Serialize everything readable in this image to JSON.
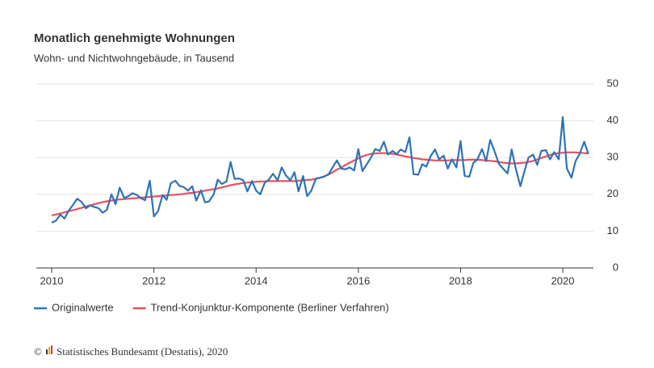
{
  "chart_data": {
    "type": "line",
    "title": "Monatlich genehmigte Wohnungen",
    "subtitle": "Wohn- und Nichtwohngebäude, in Tausend",
    "source": "Statistisches Bundesamt (Destatis), 2020",
    "x": [
      2010.0,
      2010.08,
      2010.17,
      2010.25,
      2010.33,
      2010.42,
      2010.5,
      2010.58,
      2010.67,
      2010.75,
      2010.83,
      2010.92,
      2011.0,
      2011.08,
      2011.17,
      2011.25,
      2011.33,
      2011.42,
      2011.5,
      2011.58,
      2011.67,
      2011.75,
      2011.83,
      2011.92,
      2012.0,
      2012.08,
      2012.17,
      2012.25,
      2012.33,
      2012.42,
      2012.5,
      2012.58,
      2012.67,
      2012.75,
      2012.83,
      2012.92,
      2013.0,
      2013.08,
      2013.17,
      2013.25,
      2013.33,
      2013.42,
      2013.5,
      2013.58,
      2013.67,
      2013.75,
      2013.83,
      2013.92,
      2014.0,
      2014.08,
      2014.17,
      2014.25,
      2014.33,
      2014.42,
      2014.5,
      2014.58,
      2014.67,
      2014.75,
      2014.83,
      2014.92,
      2015.0,
      2015.08,
      2015.17,
      2015.25,
      2015.33,
      2015.42,
      2015.5,
      2015.58,
      2015.67,
      2015.75,
      2015.83,
      2015.92,
      2016.0,
      2016.08,
      2016.17,
      2016.25,
      2016.33,
      2016.42,
      2016.5,
      2016.58,
      2016.67,
      2016.75,
      2016.83,
      2016.92,
      2017.0,
      2017.08,
      2017.17,
      2017.25,
      2017.33,
      2017.42,
      2017.5,
      2017.58,
      2017.67,
      2017.75,
      2017.83,
      2017.92,
      2018.0,
      2018.08,
      2018.17,
      2018.25,
      2018.33,
      2018.42,
      2018.5,
      2018.58,
      2018.67,
      2018.75,
      2018.83,
      2018.92,
      2019.0,
      2019.08,
      2019.17,
      2019.25,
      2019.33,
      2019.42,
      2019.5,
      2019.58,
      2019.67,
      2019.75,
      2019.83,
      2019.92,
      2020.0,
      2020.08,
      2020.17,
      2020.25,
      2020.33,
      2020.42,
      2020.5
    ],
    "series": [
      {
        "name": "Originalwerte",
        "color": "#2f72b5",
        "values": [
          12.3,
          12.8,
          14.5,
          13.4,
          15.5,
          17.2,
          18.8,
          18.0,
          16.2,
          17.0,
          16.6,
          16.2,
          15.0,
          15.8,
          20.0,
          17.3,
          21.8,
          19.0,
          19.5,
          20.3,
          19.8,
          18.9,
          18.4,
          23.7,
          14.0,
          15.4,
          19.8,
          18.5,
          23.0,
          23.7,
          22.3,
          22.0,
          21.0,
          22.2,
          18.3,
          21.1,
          17.8,
          18.1,
          20.0,
          24.0,
          22.8,
          23.5,
          28.8,
          24.2,
          24.3,
          23.8,
          20.8,
          23.6,
          21.0,
          20.0,
          23.2,
          24.0,
          25.6,
          23.8,
          27.3,
          25.2,
          23.8,
          26.0,
          20.8,
          25.0,
          19.5,
          21.0,
          24.3,
          24.5,
          24.8,
          25.5,
          27.4,
          29.2,
          27.0,
          26.8,
          27.3,
          26.5,
          32.3,
          26.3,
          28.3,
          30.0,
          32.3,
          31.8,
          34.3,
          30.8,
          31.8,
          30.9,
          32.2,
          31.5,
          35.5,
          25.5,
          25.3,
          28.2,
          27.5,
          30.5,
          32.2,
          29.5,
          30.5,
          27.0,
          29.5,
          27.3,
          34.5,
          25.0,
          24.8,
          28.5,
          29.5,
          32.3,
          29.0,
          34.8,
          31.5,
          28.3,
          27.0,
          25.7,
          32.2,
          27.0,
          22.2,
          26.3,
          30.0,
          30.8,
          28.0,
          31.8,
          32.0,
          29.5,
          31.5,
          29.5,
          41.0,
          27.0,
          24.5,
          29.0,
          31.0,
          34.3,
          31.0
        ]
      },
      {
        "name": "Trend-Konjunktur-Komponente (Berliner Verfahren)",
        "color": "#e8505b",
        "values": [
          14.3,
          14.5,
          14.8,
          15.1,
          15.4,
          15.7,
          16.0,
          16.3,
          16.7,
          17.0,
          17.3,
          17.6,
          17.9,
          18.1,
          18.3,
          18.5,
          18.6,
          18.7,
          18.8,
          18.9,
          19.0,
          19.1,
          19.2,
          19.3,
          19.4,
          19.5,
          19.6,
          19.7,
          19.8,
          19.9,
          20.0,
          20.1,
          20.3,
          20.4,
          20.6,
          20.8,
          21.0,
          21.2,
          21.4,
          21.6,
          21.9,
          22.2,
          22.5,
          22.7,
          22.9,
          23.1,
          23.2,
          23.3,
          23.4,
          23.5,
          23.5,
          23.6,
          23.6,
          23.6,
          23.6,
          23.6,
          23.6,
          23.6,
          23.7,
          23.8,
          23.9,
          24.0,
          24.2,
          24.5,
          24.9,
          25.4,
          26.0,
          26.7,
          27.3,
          28.0,
          28.6,
          29.2,
          29.8,
          30.3,
          30.7,
          31.0,
          31.1,
          31.2,
          31.2,
          31.1,
          31.0,
          30.8,
          30.6,
          30.3,
          30.1,
          29.9,
          29.7,
          29.5,
          29.4,
          29.3,
          29.2,
          29.2,
          29.2,
          29.2,
          29.3,
          29.3,
          29.3,
          29.3,
          29.4,
          29.4,
          29.4,
          29.3,
          29.2,
          29.1,
          29.0,
          28.8,
          28.6,
          28.5,
          28.4,
          28.4,
          28.5,
          28.6,
          28.8,
          29.1,
          29.5,
          29.9,
          30.3,
          30.7,
          31.0,
          31.2,
          31.3,
          31.4,
          31.4,
          31.4,
          31.3,
          31.2,
          31.1
        ]
      }
    ],
    "xlim": [
      2009.7,
      2020.6
    ],
    "xticks": [
      2010,
      2012,
      2014,
      2016,
      2018,
      2020
    ],
    "ylim": [
      0,
      50
    ],
    "yticks": [
      0,
      10,
      20,
      30,
      40,
      50
    ],
    "grid": true
  }
}
